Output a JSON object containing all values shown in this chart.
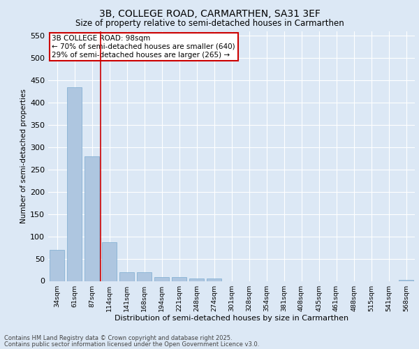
{
  "title1": "3B, COLLEGE ROAD, CARMARTHEN, SA31 3EF",
  "title2": "Size of property relative to semi-detached houses in Carmarthen",
  "xlabel": "Distribution of semi-detached houses by size in Carmarthen",
  "ylabel": "Number of semi-detached properties",
  "categories": [
    "34sqm",
    "61sqm",
    "87sqm",
    "114sqm",
    "141sqm",
    "168sqm",
    "194sqm",
    "221sqm",
    "248sqm",
    "274sqm",
    "301sqm",
    "328sqm",
    "354sqm",
    "381sqm",
    "408sqm",
    "435sqm",
    "461sqm",
    "488sqm",
    "515sqm",
    "541sqm",
    "568sqm"
  ],
  "values": [
    70,
    435,
    280,
    87,
    20,
    20,
    8,
    8,
    5,
    5,
    0,
    0,
    0,
    0,
    0,
    0,
    0,
    0,
    0,
    0,
    2
  ],
  "bar_color": "#aec6e0",
  "bar_edge_color": "#7aaad0",
  "vline_x_idx": 2.5,
  "vline_color": "#cc0000",
  "annotation_text": "3B COLLEGE ROAD: 98sqm\n← 70% of semi-detached houses are smaller (640)\n29% of semi-detached houses are larger (265) →",
  "annotation_box_color": "#ffffff",
  "annotation_box_edge_color": "#cc0000",
  "ylim": [
    0,
    560
  ],
  "yticks": [
    0,
    50,
    100,
    150,
    200,
    250,
    300,
    350,
    400,
    450,
    500,
    550
  ],
  "bg_color": "#dce8f5",
  "plot_bg_color": "#dce8f5",
  "grid_color": "#ffffff",
  "title1_fontsize": 10,
  "title2_fontsize": 8.5,
  "footer1": "Contains HM Land Registry data © Crown copyright and database right 2025.",
  "footer2": "Contains public sector information licensed under the Open Government Licence v3.0."
}
